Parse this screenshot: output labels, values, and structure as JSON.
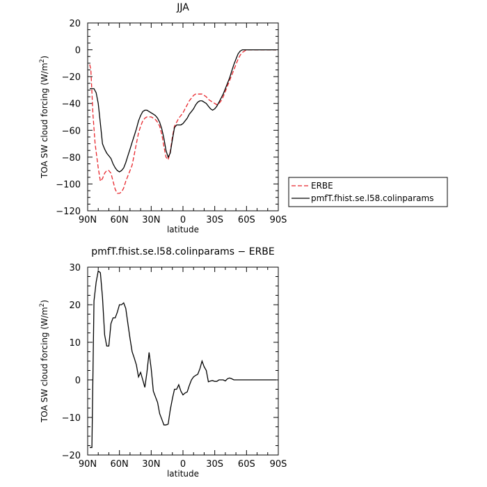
{
  "chart_data": [
    {
      "type": "line",
      "title": "JJA",
      "xlabel": "latitude",
      "ylabel": "TOA SW cloud forcing (W/m²)",
      "ylabel_main": "TOA SW cloud forcing (W/m",
      "ylabel_sup": "2",
      "ylabel_end": ")",
      "xlim": [
        -90,
        90
      ],
      "ylim": [
        -120,
        20
      ],
      "xticks": [
        -90,
        -60,
        -30,
        0,
        30,
        60,
        90
      ],
      "xtick_labels": [
        "90N",
        "60N",
        "30N",
        "0",
        "30S",
        "60S",
        "90S"
      ],
      "yticks": [
        20,
        0,
        -20,
        -40,
        -60,
        -80,
        -100,
        -120
      ],
      "ytick_labels": [
        "20",
        "0",
        "−20",
        "−40",
        "−60",
        "−80",
        "−100",
        "−120"
      ],
      "legend": "right",
      "series": [
        {
          "name": "ERBE",
          "color": "#e8242a",
          "dash": true,
          "x": [
            -88,
            -87,
            -85,
            -83,
            -80,
            -78,
            -76,
            -74,
            -72,
            -70,
            -68,
            -66,
            -64,
            -62,
            -60,
            -58,
            -56,
            -54,
            -52,
            -50,
            -48,
            -46,
            -44,
            -42,
            -40,
            -38,
            -36,
            -34,
            -32,
            -30,
            -28,
            -26,
            -24,
            -22,
            -20,
            -18,
            -16,
            -14,
            -12,
            -10,
            -8,
            -6,
            -4,
            -2,
            0,
            2,
            4,
            6,
            8,
            10,
            12,
            14,
            16,
            18,
            20,
            22,
            24,
            26,
            28,
            30,
            32,
            34,
            36,
            38,
            40,
            42,
            44,
            46,
            48,
            50,
            52,
            54,
            56,
            58,
            60,
            62,
            64,
            66,
            68,
            70,
            72,
            74,
            76,
            78,
            80,
            82,
            84,
            86,
            88
          ],
          "y": [
            -11,
            -15,
            -48,
            -70,
            -88,
            -98,
            -96,
            -92,
            -90,
            -90,
            -92,
            -98,
            -104,
            -107,
            -107,
            -106,
            -103,
            -98,
            -94,
            -90,
            -86,
            -78,
            -70,
            -62,
            -57,
            -53,
            -51,
            -50,
            -50,
            -50,
            -51,
            -52,
            -54,
            -57,
            -63,
            -72,
            -80,
            -82,
            -76,
            -65,
            -57,
            -54,
            -51,
            -49,
            -47,
            -44,
            -41,
            -38,
            -36,
            -34,
            -33,
            -33,
            -33,
            -33,
            -34,
            -35,
            -37,
            -38,
            -39,
            -40,
            -41,
            -40,
            -38,
            -35,
            -31,
            -27,
            -23,
            -19,
            -15,
            -11,
            -7,
            -4,
            -2,
            -1,
            0,
            0,
            0,
            0,
            0,
            0,
            0,
            0,
            0,
            0,
            0,
            0,
            0,
            0,
            0
          ]
        },
        {
          "name": "pmfT.fhist.se.l58.colinparams",
          "color": "#000000",
          "dash": false,
          "x": [
            -88,
            -86,
            -84,
            -82,
            -80,
            -78,
            -76,
            -74,
            -72,
            -70,
            -68,
            -66,
            -64,
            -62,
            -60,
            -58,
            -56,
            -54,
            -52,
            -50,
            -48,
            -46,
            -44,
            -42,
            -40,
            -38,
            -36,
            -34,
            -32,
            -30,
            -28,
            -26,
            -24,
            -22,
            -20,
            -18,
            -16,
            -14,
            -12,
            -10,
            -8,
            -6,
            -4,
            -2,
            0,
            2,
            4,
            6,
            8,
            10,
            12,
            14,
            16,
            18,
            20,
            22,
            24,
            26,
            28,
            30,
            32,
            34,
            36,
            38,
            40,
            42,
            44,
            46,
            48,
            50,
            52,
            54,
            56,
            58,
            60,
            62,
            64,
            66,
            68,
            70,
            72,
            74,
            76,
            78,
            80,
            82,
            84,
            86,
            88
          ],
          "y": [
            -29,
            -29,
            -29,
            -32,
            -40,
            -55,
            -70,
            -74,
            -77,
            -79,
            -81,
            -85,
            -88,
            -90,
            -91,
            -90,
            -88,
            -84,
            -79,
            -74,
            -69,
            -64,
            -59,
            -53,
            -49,
            -46,
            -45,
            -45,
            -46,
            -47,
            -48,
            -49,
            -51,
            -54,
            -59,
            -66,
            -75,
            -80,
            -77,
            -67,
            -58,
            -56,
            -56,
            -56,
            -55,
            -53,
            -51,
            -48,
            -46,
            -44,
            -41,
            -39,
            -38,
            -38,
            -39,
            -40,
            -42,
            -44,
            -45,
            -44,
            -42,
            -39,
            -36,
            -33,
            -29,
            -25,
            -21,
            -16,
            -11,
            -7,
            -3,
            -1,
            0,
            0,
            0,
            0,
            0,
            0,
            0,
            0,
            0,
            0,
            0,
            0,
            0,
            0,
            0,
            0,
            0
          ]
        }
      ]
    },
    {
      "type": "line",
      "title": "pmfT.fhist.se.l58.colinparams − ERBE",
      "xlabel": "latitude",
      "ylabel": "TOA SW cloud forcing (W/m²)",
      "ylabel_main": "TOA SW cloud forcing (W/m",
      "ylabel_sup": "2",
      "ylabel_end": ")",
      "xlim": [
        -90,
        90
      ],
      "ylim": [
        -20,
        30
      ],
      "xticks": [
        -90,
        -60,
        -30,
        0,
        30,
        60,
        90
      ],
      "xtick_labels": [
        "90N",
        "60N",
        "30N",
        "0",
        "30S",
        "60S",
        "90S"
      ],
      "yticks": [
        30,
        20,
        10,
        0,
        -10,
        -20
      ],
      "ytick_labels": [
        "30",
        "20",
        "10",
        "0",
        "−10",
        "−20"
      ],
      "series": [
        {
          "color": "#000000",
          "dash": false,
          "x": [
            -88,
            -86,
            -84,
            -82,
            -80,
            -78,
            -76,
            -74,
            -72,
            -70,
            -68,
            -66,
            -64,
            -62,
            -60,
            -58,
            -56,
            -54,
            -52,
            -50,
            -48,
            -46,
            -44,
            -42,
            -40,
            -38,
            -36,
            -34,
            -32,
            -30,
            -28,
            -26,
            -24,
            -22,
            -20,
            -18,
            -16,
            -14,
            -12,
            -10,
            -8,
            -6,
            -4,
            -2,
            0,
            2,
            4,
            6,
            8,
            10,
            12,
            14,
            16,
            18,
            20,
            22,
            24,
            26,
            28,
            30,
            32,
            34,
            36,
            38,
            40,
            42,
            44,
            46,
            48,
            50,
            52,
            54,
            56,
            58,
            60,
            62,
            64,
            66,
            68,
            70,
            72,
            74,
            76,
            78,
            80,
            82,
            84,
            86,
            88
          ],
          "y": [
            -18,
            -18,
            21,
            26,
            29,
            28.5,
            22,
            12,
            9,
            9,
            15,
            16.5,
            16.5,
            18,
            20,
            20,
            20.5,
            19,
            15,
            11,
            7.5,
            5.8,
            4,
            0.8,
            2,
            0,
            -2,
            2,
            7.3,
            3,
            -3,
            -4.5,
            -6,
            -9,
            -10.5,
            -12,
            -12,
            -11.8,
            -8,
            -5,
            -2.5,
            -2.5,
            -1.3,
            -3,
            -4,
            -3.5,
            -3.2,
            -1.5,
            0,
            0.8,
            1.2,
            1.5,
            3,
            5,
            3.5,
            2.5,
            -0.5,
            -0.3,
            -0.2,
            -0.4,
            -0.4,
            0,
            0,
            0,
            -0.3,
            0.3,
            0.5,
            0.3,
            0,
            0,
            0,
            0,
            0,
            0,
            0,
            0,
            0,
            0,
            0,
            0,
            0,
            0,
            0,
            0,
            0,
            0,
            0,
            0,
            0
          ]
        }
      ]
    }
  ]
}
